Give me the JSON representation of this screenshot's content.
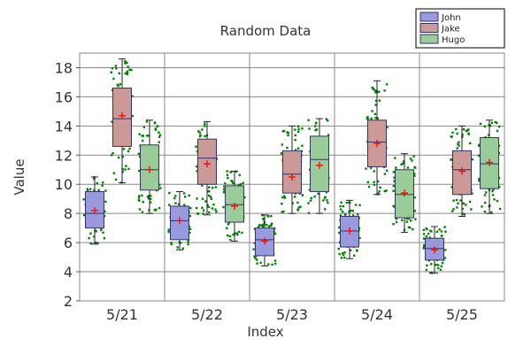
{
  "chart_data": {
    "type": "box",
    "title": "Random Data",
    "xlabel": "Index",
    "ylabel": "Value",
    "categories": [
      "5/21",
      "5/22",
      "5/23",
      "5/24",
      "5/25"
    ],
    "ylim": [
      2,
      19
    ],
    "yticks": [
      2,
      4,
      6,
      8,
      10,
      12,
      14,
      16,
      18
    ],
    "grid": true,
    "legend_position": "top-right",
    "point_color": "#008000",
    "mean_marker_color": "#ff0000",
    "series": [
      {
        "name": "John",
        "color": "#9999dd",
        "boxes": [
          {
            "min": 5.9,
            "q1": 7.0,
            "median": 8.0,
            "q3": 9.5,
            "max": 10.5,
            "mean": 8.2
          },
          {
            "min": 5.5,
            "q1": 6.2,
            "median": 7.5,
            "q3": 8.5,
            "max": 9.5,
            "mean": 7.5
          },
          {
            "min": 4.4,
            "q1": 5.1,
            "median": 6.2,
            "q3": 7.0,
            "max": 7.9,
            "mean": 6.1
          },
          {
            "min": 4.9,
            "q1": 5.7,
            "median": 6.8,
            "q3": 7.8,
            "max": 8.9,
            "mean": 6.8
          },
          {
            "min": 3.9,
            "q1": 4.8,
            "median": 5.6,
            "q3": 6.3,
            "max": 7.1,
            "mean": 5.5
          }
        ]
      },
      {
        "name": "Jake",
        "color": "#cc9999",
        "boxes": [
          {
            "min": 10.1,
            "q1": 12.6,
            "median": 14.5,
            "q3": 16.6,
            "max": 18.6,
            "mean": 14.7
          },
          {
            "min": 7.9,
            "q1": 10.0,
            "median": 11.8,
            "q3": 13.1,
            "max": 14.3,
            "mean": 11.4
          },
          {
            "min": 8.0,
            "q1": 9.4,
            "median": 10.7,
            "q3": 12.3,
            "max": 14.0,
            "mean": 10.5
          },
          {
            "min": 9.3,
            "q1": 11.2,
            "median": 12.9,
            "q3": 14.4,
            "max": 17.1,
            "mean": 12.8
          },
          {
            "min": 7.8,
            "q1": 9.3,
            "median": 11.0,
            "q3": 12.3,
            "max": 14.0,
            "mean": 10.9
          }
        ]
      },
      {
        "name": "Hugo",
        "color": "#99cc99",
        "boxes": [
          {
            "min": 8.0,
            "q1": 9.6,
            "median": 11.0,
            "q3": 12.7,
            "max": 14.4,
            "mean": 11.0
          },
          {
            "min": 6.1,
            "q1": 7.4,
            "median": 8.6,
            "q3": 9.9,
            "max": 10.9,
            "mean": 8.5
          },
          {
            "min": 8.0,
            "q1": 9.5,
            "median": 11.7,
            "q3": 13.3,
            "max": 14.5,
            "mean": 11.3
          },
          {
            "min": 6.7,
            "q1": 7.7,
            "median": 9.3,
            "q3": 11.0,
            "max": 12.1,
            "mean": 9.4
          },
          {
            "min": 8.0,
            "q1": 9.7,
            "median": 11.4,
            "q3": 13.2,
            "max": 14.4,
            "mean": 11.5
          }
        ]
      }
    ]
  }
}
